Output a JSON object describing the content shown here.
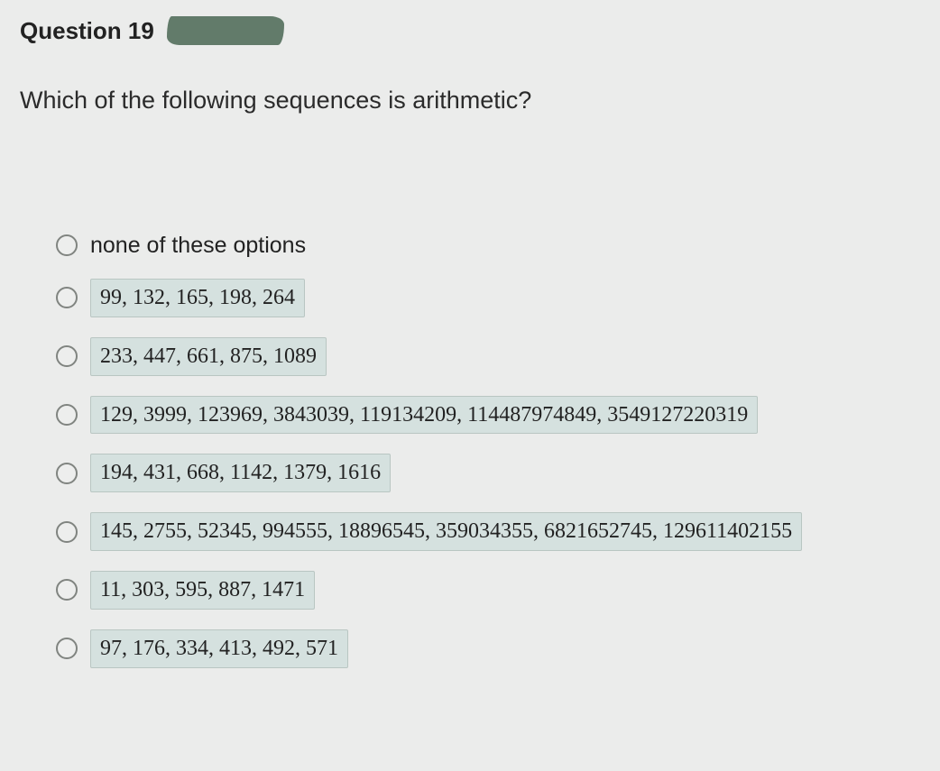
{
  "question": {
    "label": "Question 19",
    "stem": "Which of the following sequences is arithmetic?"
  },
  "options": [
    {
      "text": "none of these options",
      "highlighted": false
    },
    {
      "text": "99, 132, 165, 198, 264",
      "highlighted": true
    },
    {
      "text": "233, 447, 661, 875, 1089",
      "highlighted": true
    },
    {
      "text": "129, 3999, 123969, 3843039, 119134209, 114487974849, 3549127220319",
      "highlighted": true
    },
    {
      "text": "194, 431, 668, 1142, 1379, 1616",
      "highlighted": true
    },
    {
      "text": "145, 2755, 52345, 994555, 18896545, 359034355, 6821652745, 129611402155",
      "highlighted": true
    },
    {
      "text": "11, 303, 595, 887, 1471",
      "highlighted": true
    },
    {
      "text": "97, 176, 334, 413, 492, 571",
      "highlighted": true
    }
  ],
  "style": {
    "background": "#ebeceb",
    "highlight_bg": "#d5e1df",
    "highlight_border": "#b9c6c2",
    "radio_border": "#808480",
    "scribble_color": "#627b6a",
    "qlabel_fontsize": 26,
    "stem_fontsize": 27,
    "option_fontsize": 25
  }
}
